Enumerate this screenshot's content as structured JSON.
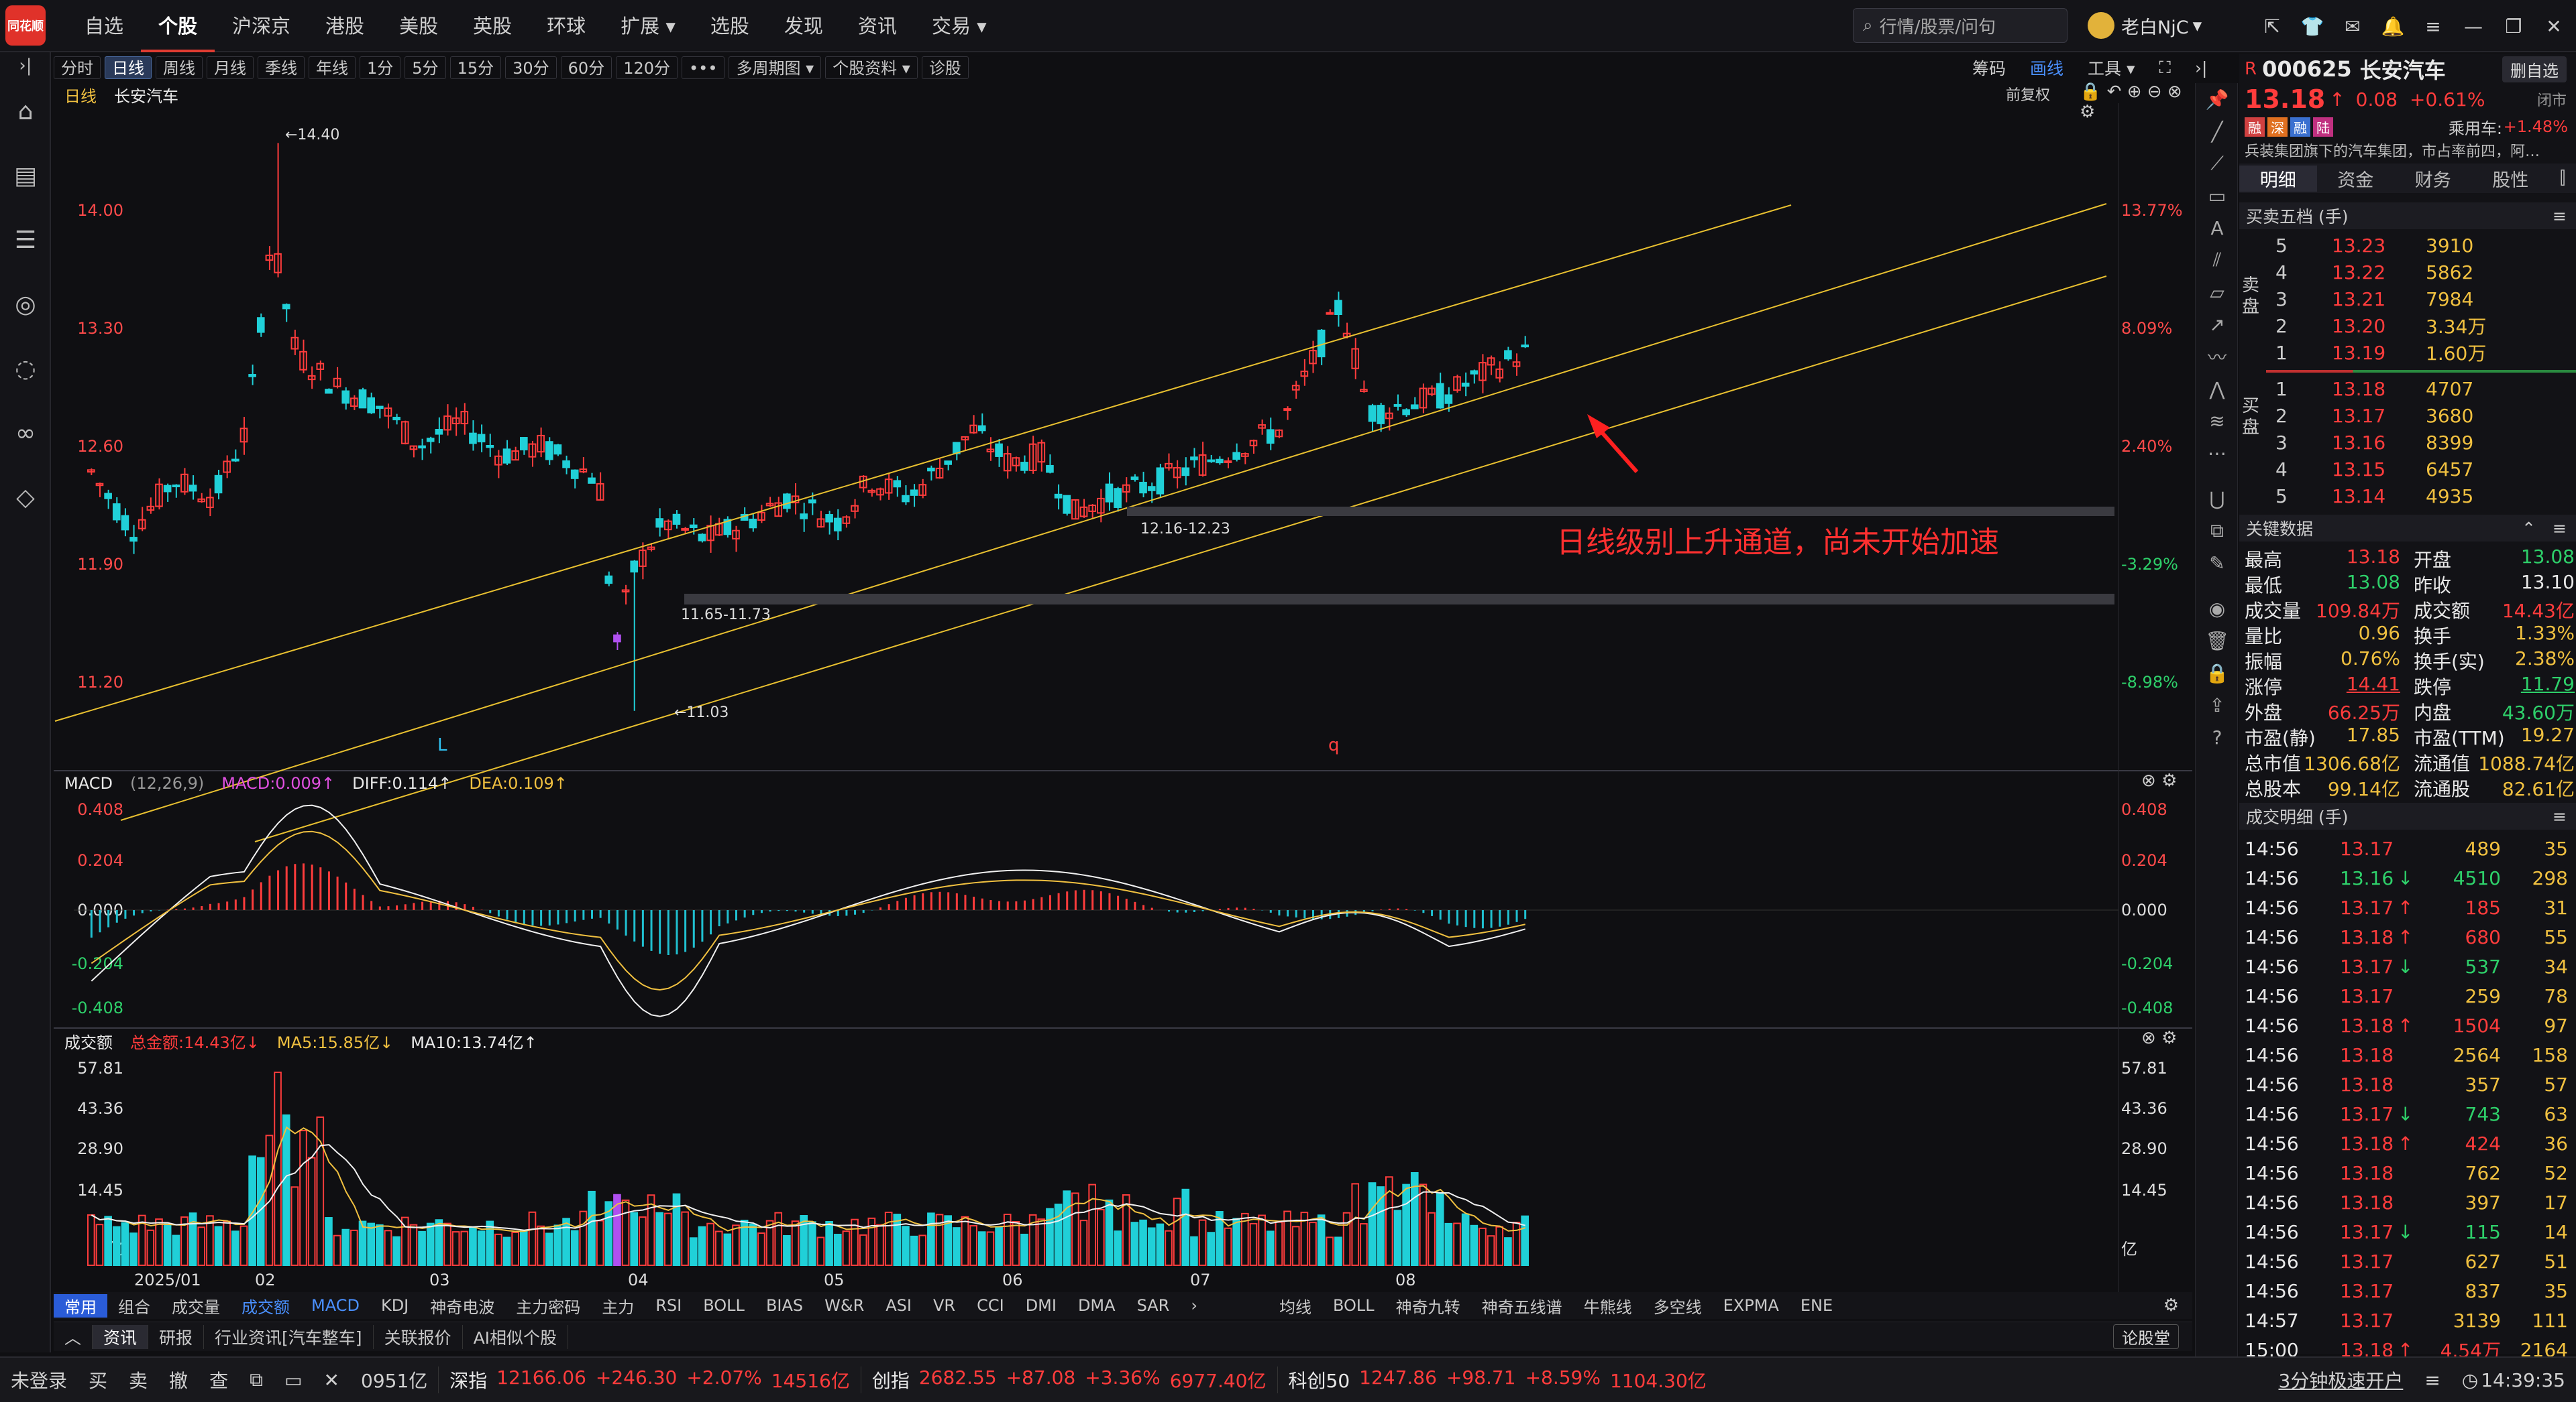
{
  "app": {
    "logo_text": "同花顺"
  },
  "topnav": [
    "自选",
    "个股",
    "沪深京",
    "港股",
    "美股",
    "英股",
    "环球",
    "扩展 ▾",
    "选股",
    "发现",
    "资讯",
    "交易 ▾"
  ],
  "topnav_active": 1,
  "search": {
    "placeholder": "行情/股票/问句"
  },
  "user": {
    "name": "老白NjC"
  },
  "toolbar": {
    "periods": [
      "分时",
      "日线",
      "周线",
      "月线",
      "季线",
      "年线",
      "1分",
      "5分",
      "15分",
      "30分",
      "60分",
      "120分",
      "•••",
      "多周期图 ▾",
      "个股资料 ▾",
      "诊股"
    ],
    "active": 1,
    "right": [
      "筹码",
      "画线",
      "工具 ▾"
    ]
  },
  "chart": {
    "period_label": "日线",
    "stock_name": "长安汽车",
    "adjust": "前复权",
    "price_ticks": [
      "14.00",
      "13.30",
      "12.60",
      "11.90",
      "11.20"
    ],
    "pct_ticks": [
      "13.77%",
      "8.09%",
      "2.40%",
      "-3.29%",
      "-8.98%"
    ],
    "annotations": {
      "high": "←14.40",
      "low": "←11.03",
      "gap1": "11.65-11.73",
      "gap2": "12.16-12.23",
      "note": "日线级别上升通道，尚未开始加速",
      "mark_l": "L",
      "mark_q": "q"
    },
    "macd": {
      "name": "MACD",
      "params": "(12,26,9)",
      "macd": "MACD:0.009↑",
      "diff": "DIFF:0.114↑",
      "dea": "DEA:0.109↑",
      "ticks": [
        "0.408",
        "0.204",
        "0.000",
        "-0.204",
        "-0.408"
      ]
    },
    "volume": {
      "name": "成交额",
      "total": "总金额:14.43亿↓",
      "ma5": "MA5:15.85亿↓",
      "ma10": "MA10:13.74亿↑",
      "ticks": [
        "57.81",
        "43.36",
        "28.90",
        "14.45",
        "亿"
      ]
    },
    "dates": [
      "2025/01",
      "02",
      "03",
      "04",
      "05",
      "06",
      "07",
      "08"
    ]
  },
  "indicator_tabs": {
    "left": [
      "常用",
      "组合",
      "成交量",
      "成交额",
      "MACD",
      "KDJ",
      "神奇电波",
      "主力密码",
      "主力",
      "RSI",
      "BOLL",
      "BIAS",
      "W&R",
      "ASI",
      "VR",
      "CCI",
      "DMI",
      "DMA",
      "SAR",
      "›"
    ],
    "right": [
      "均线",
      "BOLL",
      "神奇九转",
      "神奇五线谱",
      "牛熊线",
      "多空线",
      "EXPMA",
      "ENE"
    ]
  },
  "news_tabs": [
    "资讯",
    "研报",
    "行业资讯[汽车整车]",
    "关联报价",
    "AI相似个股"
  ],
  "news_right": "论股堂",
  "statusbar": {
    "login": "未登录",
    "actions": [
      "买",
      "卖",
      "撤",
      "查"
    ],
    "first": "0951亿",
    "indices": [
      {
        "name": "深指",
        "value": "12166.06",
        "chg": "+246.30",
        "pct": "+2.07%",
        "amt": "14516亿"
      },
      {
        "name": "创指",
        "value": "2682.55",
        "chg": "+87.08",
        "pct": "+3.36%",
        "amt": "6977.40亿"
      },
      {
        "name": "科创50",
        "value": "1247.86",
        "chg": "+98.71",
        "pct": "+8.59%",
        "amt": "1104.30亿"
      }
    ],
    "promo": "3分钟极速开户",
    "time": "14:39:35"
  },
  "quote": {
    "code": "000625",
    "name": "长安汽车",
    "prefix": "R",
    "price": "13.18",
    "chg": "0.08",
    "pct": "+0.61%",
    "status": "闭市",
    "add_btn": "删自选",
    "tags": [
      "融",
      "深",
      "融",
      "陆"
    ],
    "sector": "乘用车:",
    "sector_pct": "+1.48%",
    "desc": "兵装集团旗下的汽车集团，市占率前四，阿…"
  },
  "right_tabs": [
    "明细",
    "资金",
    "财务",
    "股性"
  ],
  "order_book": {
    "title": "买卖五档 (手)",
    "sell_label": "卖盘",
    "buy_label": "买盘",
    "asks": [
      [
        "5",
        "13.23",
        "3910"
      ],
      [
        "4",
        "13.22",
        "5862"
      ],
      [
        "3",
        "13.21",
        "7984"
      ],
      [
        "2",
        "13.20",
        "3.34万"
      ],
      [
        "1",
        "13.19",
        "1.60万"
      ]
    ],
    "bids": [
      [
        "1",
        "13.18",
        "4707"
      ],
      [
        "2",
        "13.17",
        "3680"
      ],
      [
        "3",
        "13.16",
        "8399"
      ],
      [
        "4",
        "13.15",
        "6457"
      ],
      [
        "5",
        "13.14",
        "4935"
      ]
    ]
  },
  "key_data": {
    "title": "关键数据",
    "rows": [
      [
        "最高",
        "13.18",
        "开盘",
        "13.08"
      ],
      [
        "最低",
        "13.08",
        "昨收",
        "13.10"
      ],
      [
        "成交量",
        "109.84万",
        "成交额",
        "14.43亿"
      ],
      [
        "量比",
        "0.96",
        "换手",
        "1.33%"
      ],
      [
        "振幅",
        "0.76%",
        "换手(实)",
        "2.38%"
      ],
      [
        "涨停",
        "14.41",
        "跌停",
        "11.79"
      ],
      [
        "外盘",
        "66.25万",
        "内盘",
        "43.60万"
      ],
      [
        "市盈(静)",
        "17.85",
        "市盈(TTM)",
        "19.27"
      ],
      [
        "总市值",
        "1306.68亿",
        "流通值",
        "1088.74亿"
      ],
      [
        "总股本",
        "99.14亿",
        "流通股",
        "82.61亿"
      ]
    ]
  },
  "trades": {
    "title": "成交明细 (手)",
    "rows": [
      [
        "14:56",
        "13.17",
        "",
        "489",
        "35"
      ],
      [
        "14:56",
        "13.16",
        "↓",
        "4510",
        "298"
      ],
      [
        "14:56",
        "13.17",
        "↑",
        "185",
        "31"
      ],
      [
        "14:56",
        "13.18",
        "↑",
        "680",
        "55"
      ],
      [
        "14:56",
        "13.17",
        "↓",
        "537",
        "34"
      ],
      [
        "14:56",
        "13.17",
        "",
        "259",
        "78"
      ],
      [
        "14:56",
        "13.18",
        "↑",
        "1504",
        "97"
      ],
      [
        "14:56",
        "13.18",
        "",
        "2564",
        "158"
      ],
      [
        "14:56",
        "13.18",
        "",
        "357",
        "57"
      ],
      [
        "14:56",
        "13.17",
        "↓",
        "743",
        "63"
      ],
      [
        "14:56",
        "13.18",
        "↑",
        "424",
        "36"
      ],
      [
        "14:56",
        "13.18",
        "",
        "762",
        "52"
      ],
      [
        "14:56",
        "13.18",
        "",
        "397",
        "17"
      ],
      [
        "14:56",
        "13.17",
        "↓",
        "115",
        "14"
      ],
      [
        "14:56",
        "13.17",
        "",
        "627",
        "51"
      ],
      [
        "14:56",
        "13.17",
        "",
        "837",
        "35"
      ],
      [
        "14:57",
        "13.17",
        "",
        "3139",
        "111"
      ],
      [
        "15:00",
        "13.18",
        "↑",
        "4.54万",
        "2164"
      ]
    ]
  }
}
